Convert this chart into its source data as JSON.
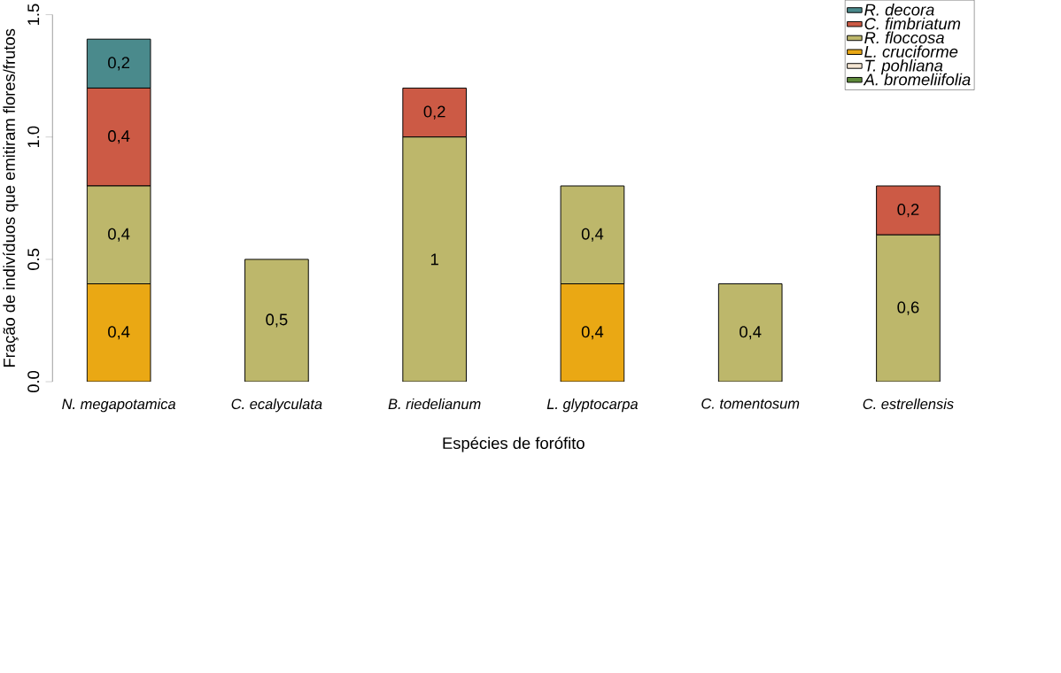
{
  "chart_data": {
    "type": "bar",
    "stacked": true,
    "xlabel": "Espécies de forófito",
    "ylabel": "Fração de indivíduos que emitiram flores/frutos",
    "categories": [
      "N. megapotamica",
      "C. ecalyculata",
      "B. riedelianum",
      "L. glyptocarpa",
      "C. tomentosum",
      "C. estrellensis"
    ],
    "series": [
      {
        "name": "A. bromeliifolia",
        "color": "#5e8a3a",
        "values": [
          0,
          0,
          0,
          0,
          0,
          0
        ],
        "value_labels": [
          null,
          null,
          null,
          null,
          null,
          null
        ]
      },
      {
        "name": "T. pohliana",
        "color": "#f5e6d3",
        "values": [
          0,
          0,
          0,
          0,
          0,
          0
        ],
        "value_labels": [
          null,
          null,
          null,
          null,
          null,
          null
        ]
      },
      {
        "name": "L. cruciforme",
        "color": "#eaa814",
        "values": [
          0.4,
          0,
          0,
          0.4,
          0,
          0
        ],
        "value_labels": [
          "0,4",
          null,
          null,
          "0,4",
          null,
          null
        ]
      },
      {
        "name": "R. floccosa",
        "color": "#bdb76b",
        "values": [
          0.4,
          0.5,
          1,
          0.4,
          0.4,
          0.6
        ],
        "value_labels": [
          "0,4",
          "0,5",
          "1",
          "0,4",
          "0,4",
          "0,6"
        ]
      },
      {
        "name": "C. fimbriatum",
        "color": "#cc5a45",
        "values": [
          0.4,
          0,
          0.2,
          0,
          0,
          0.2
        ],
        "value_labels": [
          "0,4",
          null,
          "0,2",
          null,
          null,
          "0,2"
        ]
      },
      {
        "name": "R. decora",
        "color": "#4a8a8c",
        "values": [
          0.2,
          0,
          0,
          0,
          0,
          0
        ],
        "value_labels": [
          "0,2",
          null,
          null,
          null,
          null,
          null
        ]
      }
    ],
    "ylim": [
      0,
      1.5
    ],
    "yticks": [
      {
        "value": 0,
        "label": "0.0"
      },
      {
        "value": 0.5,
        "label": "0.5"
      },
      {
        "value": 1,
        "label": "1.0"
      },
      {
        "value": 1.5,
        "label": "1.5"
      }
    ],
    "grid": false,
    "legend": "top right"
  }
}
